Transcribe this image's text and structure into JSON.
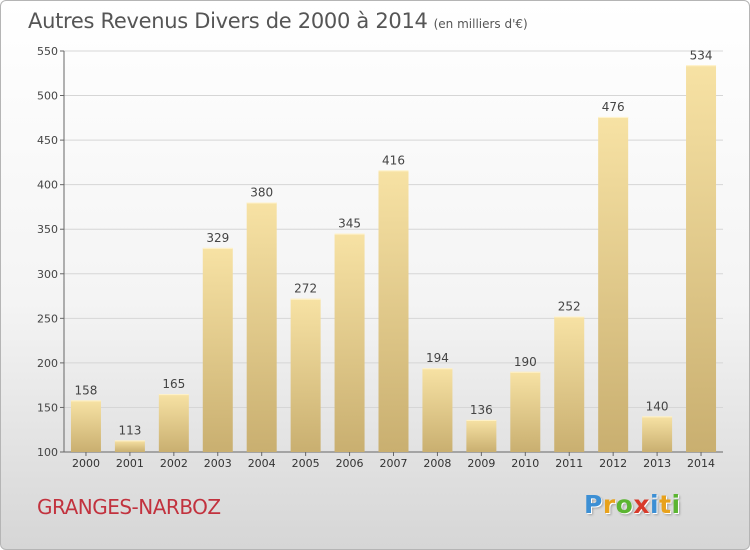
{
  "title": "Autres Revenus Divers de 2000 à 2014",
  "subtitle": "(en milliers d'€)",
  "location": "GRANGES-NARBOZ",
  "logo": {
    "letters": [
      "P",
      "r",
      "o",
      "x",
      "i",
      "t",
      "i"
    ],
    "colors": [
      "#3c8fd4",
      "#e8a21c",
      "#5bb531",
      "#d83a2a",
      "#3c8fd4",
      "#e8a21c",
      "#5bb531"
    ]
  },
  "colors": {
    "bar_light": "#f7e2a4",
    "bar_dark": "#c9af70",
    "title": "#555555",
    "location": "#c2323e"
  },
  "chart_data": {
    "type": "bar",
    "title": "Autres Revenus Divers de 2000 à 2014",
    "subtitle": "(en milliers d'€)",
    "categories": [
      "2000",
      "2001",
      "2002",
      "2003",
      "2004",
      "2005",
      "2006",
      "2007",
      "2008",
      "2009",
      "2010",
      "2011",
      "2012",
      "2013",
      "2014"
    ],
    "values": [
      158,
      113,
      165,
      329,
      380,
      272,
      345,
      416,
      194,
      136,
      190,
      252,
      476,
      140,
      534
    ],
    "ylim": [
      100,
      550
    ],
    "yticks": [
      100,
      150,
      200,
      250,
      300,
      350,
      400,
      450,
      500,
      550
    ],
    "grid": true,
    "data_labels": true
  }
}
